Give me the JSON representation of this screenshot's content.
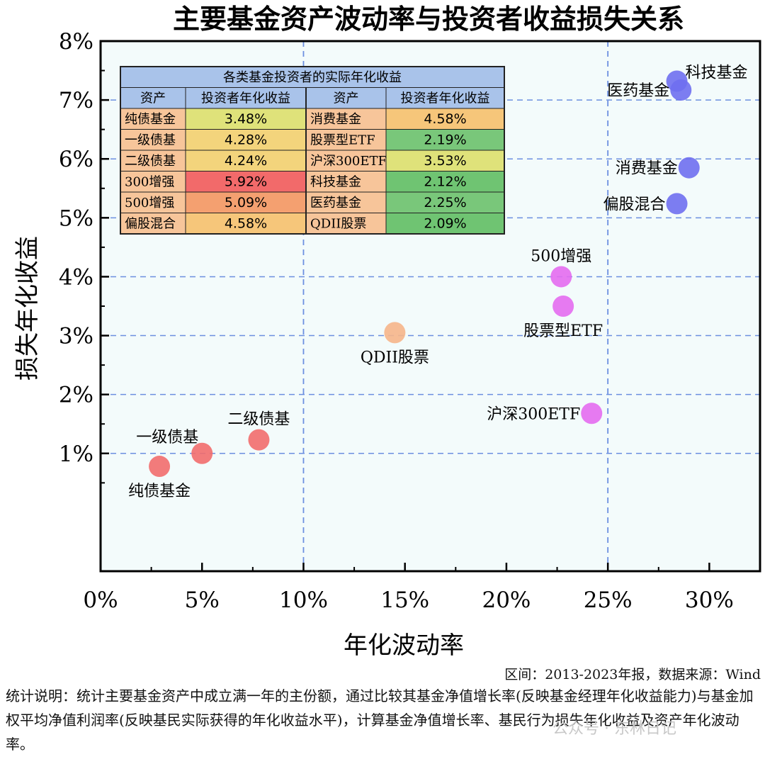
{
  "chart_data": {
    "type": "scatter",
    "title": "主要基金资产波动率与投资者收益损失关系",
    "xlabel": "年化波动率",
    "ylabel": "损失年化收益",
    "xlim": [
      0,
      32.5
    ],
    "ylim": [
      -1,
      8
    ],
    "x_ticks": [
      0,
      5,
      10,
      15,
      20,
      25,
      30
    ],
    "x_tick_labels": [
      "0%",
      "5%",
      "10%",
      "15%",
      "20%",
      "25%",
      "30%"
    ],
    "y_ticks": [
      1,
      2,
      3,
      4,
      5,
      6,
      7,
      8
    ],
    "y_tick_labels": [
      "1%",
      "2%",
      "3%",
      "4%",
      "5%",
      "6%",
      "7%",
      "8%"
    ],
    "grid": "dashed, y at each percent; x at 10% and 25%",
    "points": [
      {
        "label": "纯债基金",
        "x": 2.9,
        "y": 0.78,
        "color": "#f26d6d",
        "label_pos": "below"
      },
      {
        "label": "一级债基",
        "x": 5.0,
        "y": 1.0,
        "color": "#f26d6d",
        "label_pos": "above-left"
      },
      {
        "label": "二级债基",
        "x": 7.8,
        "y": 1.23,
        "color": "#f26d6d",
        "label_pos": "above"
      },
      {
        "label": "QDII股票",
        "x": 14.5,
        "y": 3.05,
        "color": "#f6b58a",
        "label_pos": "below"
      },
      {
        "label": "500增强",
        "x": 22.7,
        "y": 4.0,
        "color": "#e46cf0",
        "label_pos": "above"
      },
      {
        "label": "股票型ETF",
        "x": 22.8,
        "y": 3.5,
        "color": "#e46cf0",
        "label_pos": "below"
      },
      {
        "label": "沪深300ETF",
        "x": 24.2,
        "y": 1.68,
        "color": "#e46cf0",
        "label_pos": "left"
      },
      {
        "label": "科技基金",
        "x": 28.4,
        "y": 7.32,
        "color": "#6f6ff0",
        "label_pos": "right"
      },
      {
        "label": "医药基金",
        "x": 28.6,
        "y": 7.17,
        "color": "#6f6ff0",
        "label_pos": "left"
      },
      {
        "label": "消费基金",
        "x": 29.0,
        "y": 5.85,
        "color": "#6f6ff0",
        "label_pos": "left"
      },
      {
        "label": "偏股混合",
        "x": 28.4,
        "y": 5.24,
        "color": "#6f6ff0",
        "label_pos": "left"
      }
    ],
    "table": {
      "title": "各类基金投资者的实际年化收益",
      "headers": [
        "资产",
        "投资者年化收益",
        "资产",
        "投资者年化收益"
      ],
      "rows": [
        [
          {
            "name": "纯债基金",
            "value": "3.48%",
            "color": "#dfe27a"
          },
          {
            "name": "消费基金",
            "value": "4.58%",
            "color": "#f6c67a"
          }
        ],
        [
          {
            "name": "一级债基",
            "value": "4.28%",
            "color": "#f3d47c"
          },
          {
            "name": "股票型ETF",
            "value": "2.19%",
            "color": "#79c77a"
          }
        ],
        [
          {
            "name": "二级债基",
            "value": "4.24%",
            "color": "#f3d47c"
          },
          {
            "name": "沪深300ETF",
            "value": "3.53%",
            "color": "#dfe27a"
          }
        ],
        [
          {
            "name": "300增强",
            "value": "5.92%",
            "color": "#f26a6a"
          },
          {
            "name": "科技基金",
            "value": "2.12%",
            "color": "#6fc472"
          }
        ],
        [
          {
            "name": "500增强",
            "value": "5.09%",
            "color": "#f4a070"
          },
          {
            "name": "医药基金",
            "value": "2.25%",
            "color": "#79c77a"
          }
        ],
        [
          {
            "name": "偏股混合",
            "value": "4.58%",
            "color": "#f6c67a"
          },
          {
            "name": "QDII股票",
            "value": "2.09%",
            "color": "#6fc472"
          }
        ]
      ]
    }
  },
  "source_text": "区间：2013-2023年报，数据来源：Wind",
  "note_text": "统计说明：统计主要基金资产中成立满一年的主份额，通过比较其基金净值增长率(反映基金经理年化收益能力)与基金加权平均净值利润率(反映基民实际获得的年化收益水平)，计算基金净值增长率、基民行为损失年化收益及资产年化波动率。",
  "watermark_text": "公众号 · 东林日记",
  "colors": {
    "plot_bg": "#f3fbfb",
    "grid": "#6c8fe0",
    "table_header": "#a9c3ea",
    "name_cell": "#f7c59a"
  }
}
